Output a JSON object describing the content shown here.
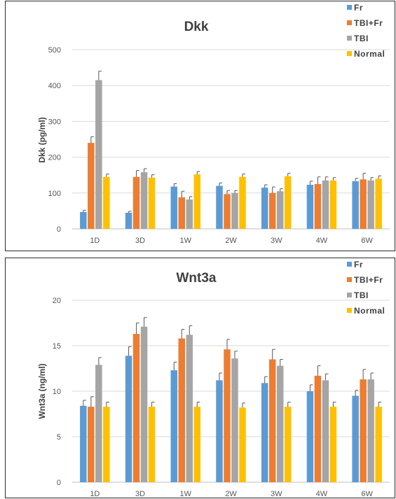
{
  "chart_data": [
    {
      "type": "bar",
      "title": "Dkk",
      "xlabel": "",
      "ylabel": "Dkk (pg/ml)",
      "ylim": [
        0,
        500
      ],
      "yticks": [
        "0",
        "100",
        "200",
        "300",
        "400",
        "500"
      ],
      "grid": true,
      "legend_position": "top-right",
      "categories": [
        "1D",
        "3D",
        "1W",
        "2W",
        "3W",
        "4W",
        "6W"
      ],
      "series": [
        {
          "name": "Fr",
          "color": "#5b9bd5",
          "values": [
            47,
            45,
            118,
            120,
            115,
            123,
            133
          ],
          "errors": [
            5,
            4,
            8,
            8,
            8,
            10,
            8
          ]
        },
        {
          "name": "TBI+Fr",
          "color": "#ed7d31",
          "values": [
            240,
            145,
            88,
            97,
            100,
            125,
            138
          ],
          "errors": [
            17,
            18,
            17,
            10,
            17,
            20,
            17
          ]
        },
        {
          "name": "TBI",
          "color": "#a5a5a5",
          "values": [
            415,
            158,
            82,
            100,
            105,
            135,
            135
          ],
          "errors": [
            25,
            10,
            8,
            7,
            7,
            10,
            8
          ]
        },
        {
          "name": "Normal",
          "color": "#ffc000",
          "values": [
            145,
            143,
            152,
            145,
            147,
            135,
            140
          ],
          "errors": [
            8,
            8,
            8,
            8,
            8,
            8,
            8
          ]
        }
      ]
    },
    {
      "type": "bar",
      "title": "Wnt3a",
      "xlabel": "",
      "ylabel": "Wnt3a (ng/ml)",
      "ylim": [
        0,
        20
      ],
      "yticks": [
        "0",
        "5",
        "10",
        "15",
        "20"
      ],
      "grid": true,
      "legend_position": "top-right",
      "categories": [
        "1D",
        "3D",
        "1W",
        "2W",
        "3W",
        "4W",
        "6W"
      ],
      "series": [
        {
          "name": "Fr",
          "color": "#5b9bd5",
          "values": [
            8.4,
            13.9,
            12.3,
            11.2,
            10.9,
            10.0,
            9.5
          ],
          "errors": [
            0.6,
            1.0,
            0.9,
            0.8,
            0.7,
            0.7,
            0.6
          ]
        },
        {
          "name": "TBI+Fr",
          "color": "#ed7d31",
          "values": [
            8.3,
            16.3,
            15.8,
            14.6,
            13.5,
            11.7,
            11.3
          ],
          "errors": [
            1.1,
            1.2,
            1.0,
            1.1,
            1.1,
            1.1,
            1.1
          ]
        },
        {
          "name": "TBI",
          "color": "#a5a5a5",
          "values": [
            12.9,
            17.1,
            16.2,
            13.6,
            12.8,
            11.2,
            11.3
          ],
          "errors": [
            0.8,
            1.0,
            1.0,
            0.8,
            0.7,
            0.7,
            0.7
          ]
        },
        {
          "name": "Normal",
          "color": "#ffc000",
          "values": [
            8.3,
            8.3,
            8.3,
            8.2,
            8.3,
            8.3,
            8.3
          ],
          "errors": [
            0.5,
            0.5,
            0.5,
            0.5,
            0.5,
            0.5,
            0.5
          ]
        }
      ]
    }
  ]
}
